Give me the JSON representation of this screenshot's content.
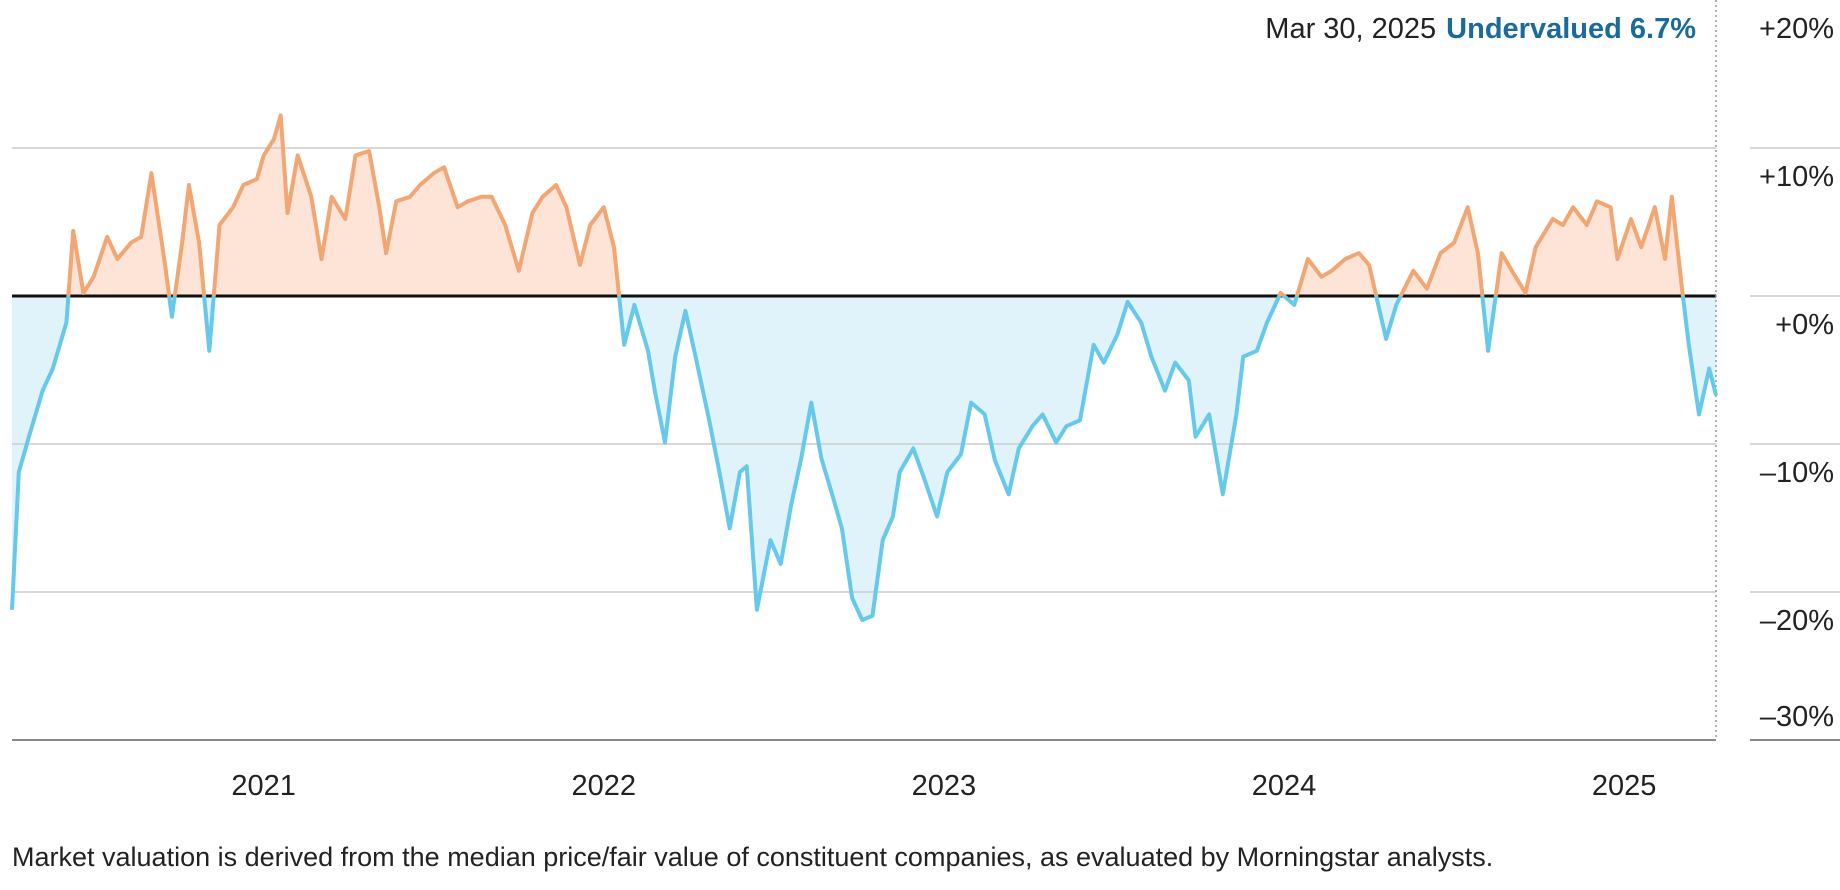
{
  "chart_data": {
    "type": "area",
    "annotation": {
      "date": "Mar 30, 2025",
      "status": "Undervalued 6.7%"
    },
    "note": "Market valuation is derived from the median price/fair value of constituent companies, as evaluated by Morningstar analysts.",
    "x": [
      2020.26,
      2020.28,
      2020.31,
      2020.35,
      2020.38,
      2020.42,
      2020.44,
      2020.47,
      2020.5,
      2020.54,
      2020.57,
      2020.61,
      2020.64,
      2020.67,
      2020.71,
      2020.73,
      2020.76,
      2020.78,
      2020.81,
      2020.84,
      2020.87,
      2020.91,
      2020.94,
      2020.98,
      2021.0,
      2021.03,
      2021.05,
      2021.07,
      2021.1,
      2021.14,
      2021.17,
      2021.2,
      2021.24,
      2021.27,
      2021.31,
      2021.34,
      2021.36,
      2021.39,
      2021.43,
      2021.46,
      2021.5,
      2021.53,
      2021.57,
      2021.6,
      2021.64,
      2021.67,
      2021.71,
      2021.75,
      2021.79,
      2021.82,
      2021.86,
      2021.89,
      2021.93,
      2021.96,
      2022.0,
      2022.03,
      2022.06,
      2022.09,
      2022.13,
      2022.15,
      2022.18,
      2022.21,
      2022.24,
      2022.27,
      2022.31,
      2022.34,
      2022.37,
      2022.4,
      2022.42,
      2022.45,
      2022.49,
      2022.52,
      2022.55,
      2022.58,
      2022.61,
      2022.64,
      2022.67,
      2022.7,
      2022.73,
      2022.76,
      2022.79,
      2022.82,
      2022.85,
      2022.87,
      2022.91,
      2022.94,
      2022.98,
      2023.01,
      2023.05,
      2023.08,
      2023.12,
      2023.15,
      2023.19,
      2023.22,
      2023.26,
      2023.29,
      2023.33,
      2023.36,
      2023.4,
      2023.44,
      2023.47,
      2023.51,
      2023.54,
      2023.58,
      2023.61,
      2023.65,
      2023.68,
      2023.72,
      2023.74,
      2023.78,
      2023.82,
      2023.86,
      2023.88,
      2023.92,
      2023.95,
      2023.99,
      2024.03,
      2024.07,
      2024.11,
      2024.14,
      2024.18,
      2024.22,
      2024.25,
      2024.3,
      2024.33,
      2024.38,
      2024.42,
      2024.46,
      2024.5,
      2024.54,
      2024.57,
      2024.6,
      2024.64,
      2024.67,
      2024.71,
      2024.74,
      2024.79,
      2024.82,
      2024.85,
      2024.89,
      2024.92,
      2024.96,
      2024.98,
      2025.02,
      2025.05,
      2025.09,
      2025.12,
      2025.14,
      2025.17,
      2025.19,
      2025.22,
      2025.25,
      2025.27
    ],
    "values": [
      -21.2,
      -11.9,
      -9.5,
      -6.4,
      -4.9,
      -1.8,
      4.4,
      0.2,
      1.3,
      4.0,
      2.5,
      3.6,
      4.0,
      8.3,
      2.1,
      -1.4,
      3.6,
      7.5,
      3.6,
      -3.7,
      4.8,
      6.0,
      7.5,
      7.9,
      9.5,
      10.6,
      12.2,
      5.6,
      9.5,
      6.7,
      2.5,
      6.7,
      5.2,
      9.5,
      9.8,
      6.0,
      2.9,
      6.4,
      6.7,
      7.5,
      8.3,
      8.7,
      6.0,
      6.4,
      6.7,
      6.7,
      4.8,
      1.7,
      5.6,
      6.7,
      7.5,
      6.0,
      2.1,
      4.8,
      6.0,
      3.3,
      -3.3,
      -0.6,
      -3.7,
      -6.4,
      -9.9,
      -4.1,
      -1.0,
      -4.1,
      -8.4,
      -11.9,
      -15.7,
      -11.9,
      -11.5,
      -21.2,
      -16.5,
      -18.1,
      -14.2,
      -11.0,
      -7.2,
      -11.0,
      -13.3,
      -15.7,
      -20.4,
      -21.9,
      -21.6,
      -16.5,
      -14.9,
      -11.9,
      -10.3,
      -12.2,
      -14.9,
      -11.9,
      -10.7,
      -7.2,
      -8.0,
      -11.1,
      -13.4,
      -10.3,
      -8.8,
      -8.0,
      -9.9,
      -8.8,
      -8.4,
      -3.3,
      -4.5,
      -2.6,
      -0.4,
      -1.8,
      -4.1,
      -6.4,
      -4.5,
      -5.7,
      -9.5,
      -8.0,
      -13.4,
      -8.0,
      -4.1,
      -3.7,
      -1.8,
      0.2,
      -0.6,
      2.5,
      1.3,
      1.7,
      2.5,
      2.9,
      2.1,
      -2.9,
      -0.6,
      1.7,
      0.5,
      2.9,
      3.6,
      6.0,
      2.9,
      -3.7,
      2.9,
      1.7,
      0.2,
      3.3,
      5.2,
      4.8,
      6.0,
      4.8,
      6.4,
      6.0,
      2.5,
      5.2,
      3.3,
      6.0,
      2.5,
      6.7,
      0.5,
      -3.3,
      -8.0,
      -4.9,
      -6.7
    ],
    "xlim": [
      2020.26,
      2025.27
    ],
    "xticks": [
      2021,
      2022,
      2023,
      2024,
      2025
    ],
    "ylim": [
      -30,
      20
    ],
    "yticks": [
      {
        "value": 20,
        "label": "+20%"
      },
      {
        "value": 10,
        "label": "+10%"
      },
      {
        "value": 0,
        "label": "+0%"
      },
      {
        "value": -10,
        "label": "–10%"
      },
      {
        "value": -20,
        "label": "–20%"
      },
      {
        "value": -30,
        "label": "–30%"
      }
    ],
    "grid": true,
    "colors": {
      "line_above": "#f2a673",
      "line_below": "#66c8ea",
      "fill_above": "#fde4d6",
      "fill_below": "#e0f3fa",
      "status": "#1b6a9c"
    }
  }
}
